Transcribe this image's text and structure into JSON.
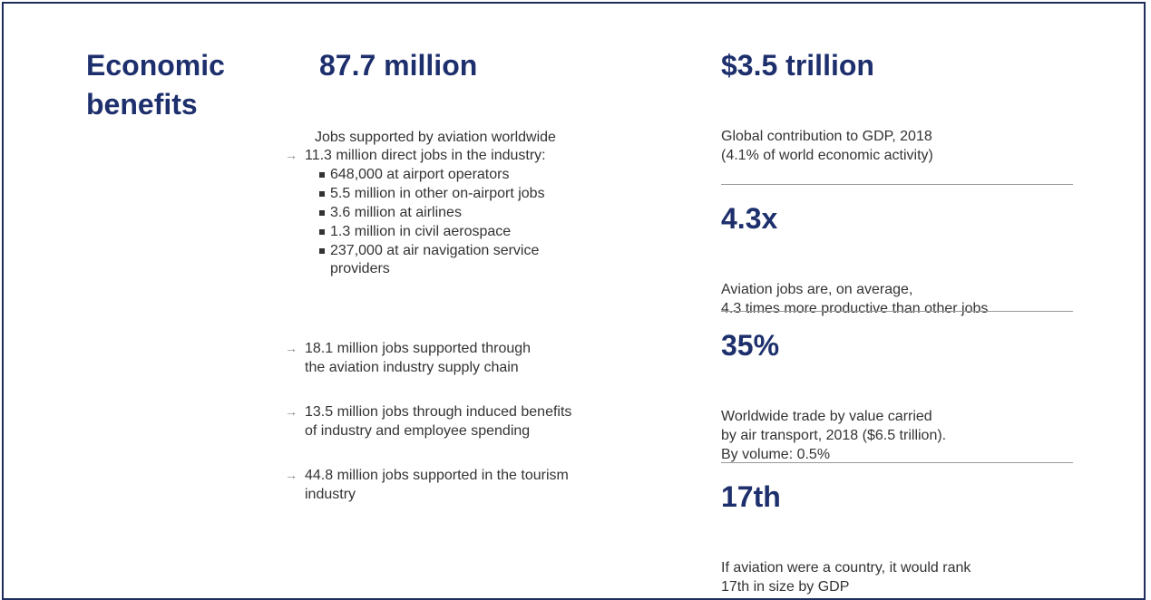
{
  "section_title": [
    "Economic",
    "benefits"
  ],
  "jobs": {
    "headline": "87.7 million",
    "subtitle": "Jobs supported by aviation worldwide",
    "items": [
      {
        "lines": [
          "11.3 million direct jobs in the industry:"
        ],
        "sub": [
          [
            "648,000 at airport operators"
          ],
          [
            "5.5 million in other on-airport jobs"
          ],
          [
            "3.6 million at airlines"
          ],
          [
            "1.3 million in civil aerospace"
          ],
          [
            "237,000 at air navigation service",
            "providers"
          ]
        ]
      },
      {
        "lines": [
          "18.1 million jobs supported through",
          "the aviation industry supply chain"
        ]
      },
      {
        "lines": [
          "13.5 million jobs through induced benefits",
          "of industry and employee spending"
        ]
      },
      {
        "lines": [
          "44.8 million jobs supported in the tourism",
          "industry"
        ]
      }
    ]
  },
  "stats": [
    {
      "headline": "$3.5 trillion",
      "lines": [
        "Global contribution to GDP, 2018",
        "(4.1% of world economic activity)"
      ]
    },
    {
      "headline": "4.3x",
      "lines": [
        "Aviation jobs are, on average,",
        "4.3 times more productive than other jobs"
      ]
    },
    {
      "headline": "35%",
      "lines": [
        "Worldwide trade by value carried",
        "by air transport, 2018 ($6.5 trillion).",
        "By volume: 0.5%"
      ]
    },
    {
      "headline": "17th",
      "lines": [
        "If aviation were a country, it would rank",
        "17th in size by GDP"
      ]
    }
  ]
}
